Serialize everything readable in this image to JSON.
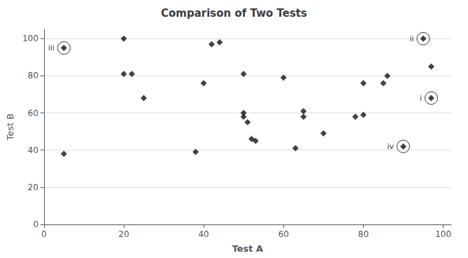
{
  "chart_data": {
    "type": "scatter",
    "title": "Comparison of Two Tests",
    "xlabel": "Test A",
    "ylabel": "Test B",
    "xlim": [
      0,
      102
    ],
    "ylim": [
      0,
      105
    ],
    "xticks": [
      0,
      20,
      40,
      60,
      80,
      100
    ],
    "yticks": [
      0,
      20,
      40,
      60,
      80,
      100
    ],
    "x": [
      5,
      20,
      20,
      22,
      25,
      38,
      40,
      42,
      44,
      50,
      50,
      50,
      51,
      52,
      53,
      60,
      63,
      65,
      65,
      70,
      78,
      80,
      80,
      85,
      86,
      90,
      95,
      97,
      97,
      5
    ],
    "values": [
      38,
      100,
      81,
      81,
      68,
      39,
      76,
      97,
      98,
      81,
      60,
      58,
      55,
      46,
      45,
      79,
      41,
      61,
      58,
      49,
      58,
      59,
      76,
      76,
      80,
      42,
      100,
      85,
      68,
      95
    ],
    "marker": "diamond",
    "color": "#111111",
    "grid": "y",
    "annotations": [
      {
        "x": 5,
        "y": 95,
        "text": "iii"
      },
      {
        "x": 95,
        "y": 100,
        "text": "ii"
      },
      {
        "x": 97,
        "y": 68,
        "text": "i"
      },
      {
        "x": 90,
        "y": 42,
        "text": "iv"
      }
    ]
  }
}
